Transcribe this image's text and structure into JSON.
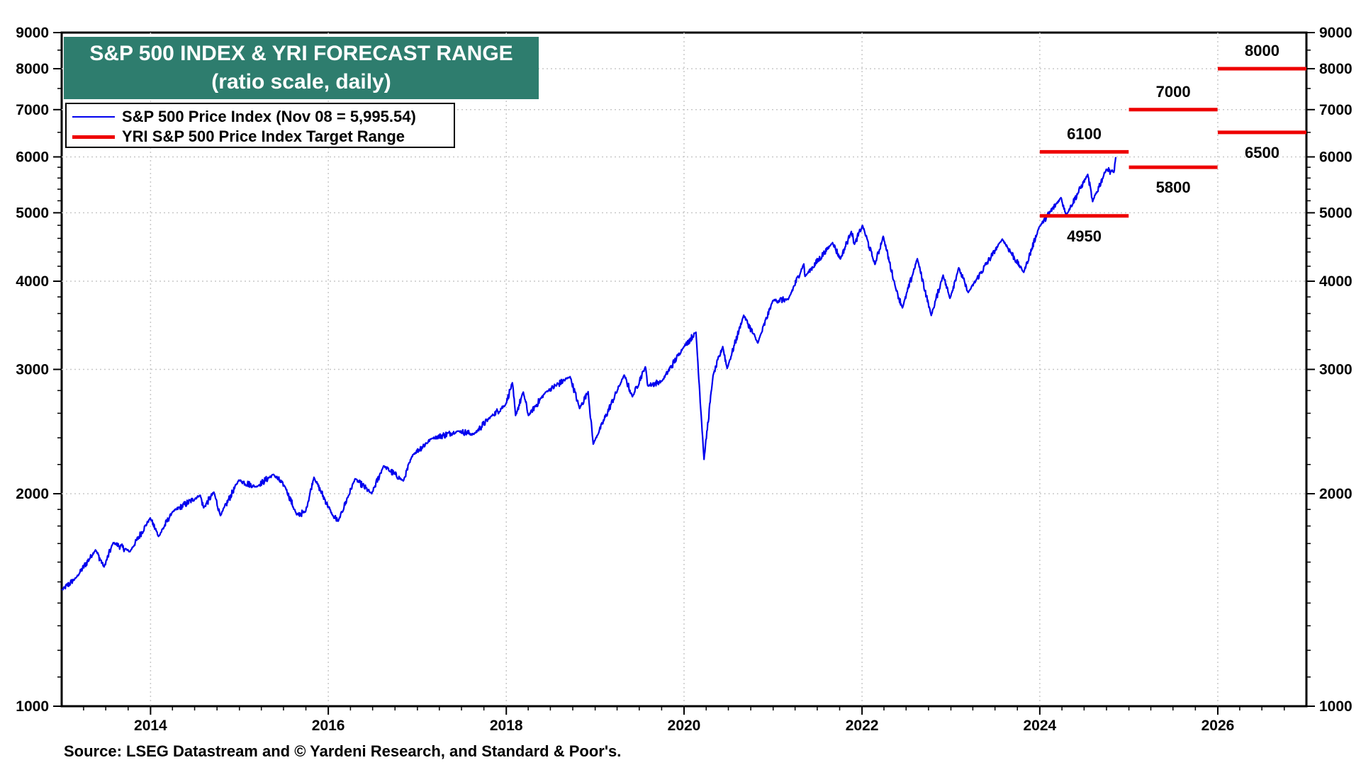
{
  "title_line1": "S&P 500 INDEX & YRI FORECAST RANGE",
  "title_line2": "(ratio scale, daily)",
  "source": "Source: LSEG Datastream and © Yardeni Research, and Standard & Poor's.",
  "colors": {
    "series": "#0000ee",
    "range": "#ee0000",
    "title_bg": "#2e7d6e"
  },
  "chart_data": {
    "type": "line",
    "yscale": "log",
    "ylim": [
      1000,
      9000
    ],
    "xlim": [
      "2013-01-01",
      "2026-12-31"
    ],
    "y_ticks": [
      "1000",
      "2000",
      "3000",
      "4000",
      "5000",
      "6000",
      "7000",
      "8000",
      "9000"
    ],
    "x_ticks": [
      "2014",
      "2016",
      "2018",
      "2020",
      "2022",
      "2024",
      "2026"
    ],
    "grid": true,
    "legend_position": "top-left",
    "series": [
      {
        "name": "S&P 500 Price Index (Nov 08 = 5,995.54)",
        "points": [
          [
            "2013-01-02",
            1460
          ],
          [
            "2013-03-01",
            1520
          ],
          [
            "2013-05-20",
            1665
          ],
          [
            "2013-06-24",
            1575
          ],
          [
            "2013-08-01",
            1705
          ],
          [
            "2013-10-08",
            1655
          ],
          [
            "2013-12-31",
            1848
          ],
          [
            "2014-02-03",
            1740
          ],
          [
            "2014-04-01",
            1885
          ],
          [
            "2014-07-24",
            1990
          ],
          [
            "2014-08-07",
            1910
          ],
          [
            "2014-09-18",
            2010
          ],
          [
            "2014-10-15",
            1862
          ],
          [
            "2014-12-29",
            2090
          ],
          [
            "2015-03-10",
            2045
          ],
          [
            "2015-05-21",
            2130
          ],
          [
            "2015-07-08",
            2045
          ],
          [
            "2015-08-24",
            1867
          ],
          [
            "2015-09-29",
            1884
          ],
          [
            "2015-11-03",
            2110
          ],
          [
            "2016-01-20",
            1860
          ],
          [
            "2016-02-11",
            1829
          ],
          [
            "2016-04-20",
            2100
          ],
          [
            "2016-06-27",
            2000
          ],
          [
            "2016-08-15",
            2190
          ],
          [
            "2016-11-04",
            2085
          ],
          [
            "2016-12-13",
            2271
          ],
          [
            "2017-03-01",
            2395
          ],
          [
            "2017-06-19",
            2453
          ],
          [
            "2017-08-21",
            2428
          ],
          [
            "2017-10-31",
            2575
          ],
          [
            "2017-12-29",
            2673
          ],
          [
            "2018-01-26",
            2872
          ],
          [
            "2018-02-08",
            2581
          ],
          [
            "2018-03-12",
            2786
          ],
          [
            "2018-04-02",
            2581
          ],
          [
            "2018-06-12",
            2786
          ],
          [
            "2018-09-20",
            2930
          ],
          [
            "2018-10-29",
            2641
          ],
          [
            "2018-12-03",
            2790
          ],
          [
            "2018-12-24",
            2351
          ],
          [
            "2019-04-30",
            2945
          ],
          [
            "2019-06-03",
            2744
          ],
          [
            "2019-07-26",
            3025
          ],
          [
            "2019-08-05",
            2845
          ],
          [
            "2019-10-02",
            2887
          ],
          [
            "2019-12-31",
            3230
          ],
          [
            "2020-02-19",
            3386
          ],
          [
            "2020-03-23",
            2237
          ],
          [
            "2020-04-29",
            2939
          ],
          [
            "2020-06-08",
            3232
          ],
          [
            "2020-06-26",
            3009
          ],
          [
            "2020-09-02",
            3580
          ],
          [
            "2020-10-30",
            3270
          ],
          [
            "2020-12-31",
            3756
          ],
          [
            "2021-03-04",
            3768
          ],
          [
            "2021-05-07",
            4232
          ],
          [
            "2021-05-12",
            4063
          ],
          [
            "2021-09-02",
            4537
          ],
          [
            "2021-10-04",
            4300
          ],
          [
            "2021-11-18",
            4705
          ],
          [
            "2021-12-01",
            4513
          ],
          [
            "2022-01-03",
            4797
          ],
          [
            "2022-02-23",
            4225
          ],
          [
            "2022-03-29",
            4631
          ],
          [
            "2022-05-20",
            3901
          ],
          [
            "2022-06-16",
            3667
          ],
          [
            "2022-08-16",
            4305
          ],
          [
            "2022-10-12",
            3577
          ],
          [
            "2022-11-30",
            4080
          ],
          [
            "2022-12-28",
            3783
          ],
          [
            "2023-02-02",
            4179
          ],
          [
            "2023-03-13",
            3855
          ],
          [
            "2023-07-31",
            4589
          ],
          [
            "2023-10-27",
            4117
          ],
          [
            "2023-12-29",
            4770
          ],
          [
            "2024-03-28",
            5254
          ],
          [
            "2024-04-19",
            4967
          ],
          [
            "2024-07-16",
            5667
          ],
          [
            "2024-08-05",
            5186
          ],
          [
            "2024-09-30",
            5762
          ],
          [
            "2024-10-31",
            5705
          ],
          [
            "2024-11-08",
            5995.54
          ]
        ]
      }
    ],
    "target_ranges": {
      "name": "YRI S&P 500 Price Index Target Range",
      "bars": [
        {
          "start": "2024-01-01",
          "end": "2024-12-31",
          "low": 4950,
          "high": 6100
        },
        {
          "start": "2025-01-01",
          "end": "2025-12-31",
          "low": 5800,
          "high": 7000
        },
        {
          "start": "2026-01-01",
          "end": "2026-12-31",
          "low": 6500,
          "high": 8000
        }
      ],
      "labels": [
        "4950",
        "6100",
        "5800",
        "7000",
        "6500",
        "8000"
      ]
    }
  }
}
